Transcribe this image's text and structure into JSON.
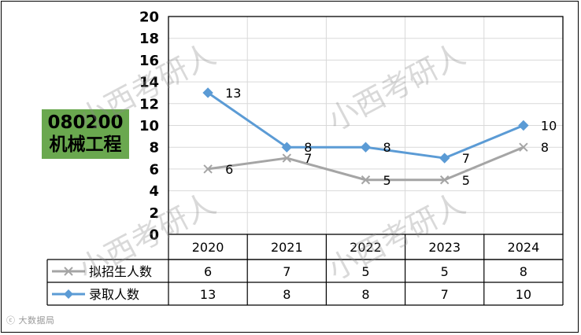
{
  "subject": {
    "code": "080200",
    "name": "机械工程"
  },
  "watermark": "小西考研人",
  "source_caption": "ⓒ 大数据局",
  "colors": {
    "series1": "#a5a5a5",
    "series2": "#5b9bd5",
    "badge": "#6aa84f"
  },
  "chart_data": {
    "type": "line",
    "categories": [
      "2020",
      "2021",
      "2022",
      "2023",
      "2024"
    ],
    "ylim": [
      0,
      20
    ],
    "yticks": [
      0,
      2,
      4,
      6,
      8,
      10,
      12,
      14,
      16,
      18,
      20
    ],
    "grid": true,
    "series": [
      {
        "name": "拟招生人数",
        "values": [
          6,
          7,
          5,
          5,
          8
        ],
        "marker": "x"
      },
      {
        "name": "录取人数",
        "values": [
          13,
          8,
          8,
          7,
          10
        ],
        "marker": "diamond"
      }
    ],
    "data_table": true
  }
}
